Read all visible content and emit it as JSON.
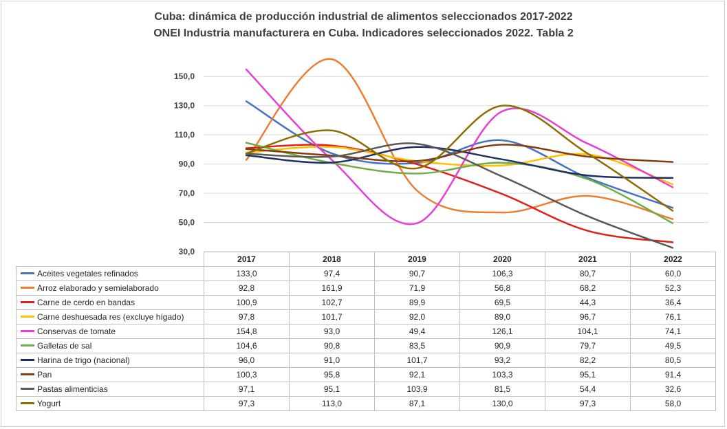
{
  "chart_data": {
    "type": "line",
    "title": "Cuba: dinámica de producción industrial de alimentos seleccionados  2017-2022",
    "subtitle": "ONEI Industria manufacturera en Cuba. Indicadores seleccionados 2022. Tabla 2",
    "categories": [
      "2017",
      "2018",
      "2019",
      "2020",
      "2021",
      "2022"
    ],
    "ylim": [
      30,
      160
    ],
    "yticks": [
      "150,0",
      "130,0",
      "110,0",
      "90,0",
      "70,0",
      "50,0",
      "30,0"
    ],
    "ytick_values": [
      150,
      130,
      110,
      90,
      70,
      50,
      30
    ],
    "grid": true,
    "legend": "data-table",
    "series": [
      {
        "name": "Aceites vegetales refinados",
        "color": "#4472c4",
        "values": [
          133.0,
          97.4,
          90.7,
          106.3,
          80.7,
          60.0
        ],
        "labels": [
          "133,0",
          "97,4",
          "90,7",
          "106,3",
          "80,7",
          "60,0"
        ]
      },
      {
        "name": "Arroz elaborado y semielaborado",
        "color": "#ed7d31",
        "values": [
          92.8,
          161.9,
          71.9,
          56.8,
          68.2,
          52.3
        ],
        "labels": [
          "92,8",
          "161,9",
          "71,9",
          "56,8",
          "68,2",
          "52,3"
        ]
      },
      {
        "name": "Carne de cerdo en bandas",
        "color": "#e0201b",
        "values": [
          100.9,
          102.7,
          89.9,
          69.5,
          44.3,
          36.4
        ],
        "labels": [
          "100,9",
          "102,7",
          "89,9",
          "69,5",
          "44,3",
          "36,4"
        ]
      },
      {
        "name": "Carne deshuesada res (excluye hígado)",
        "color": "#ffc000",
        "values": [
          97.8,
          101.7,
          92.0,
          89.0,
          96.7,
          76.1
        ],
        "labels": [
          "97,8",
          "101,7",
          "92,0",
          "89,0",
          "96,7",
          "76,1"
        ]
      },
      {
        "name": "Conservas de tomate",
        "color": "#e83ed6",
        "values": [
          154.8,
          93.0,
          49.4,
          126.1,
          104.1,
          74.1
        ],
        "labels": [
          "154,8",
          "93,0",
          "49,4",
          "126,1",
          "104,1",
          "74,1"
        ]
      },
      {
        "name": "Galletas de sal",
        "color": "#70ad47",
        "values": [
          104.6,
          90.8,
          83.5,
          90.9,
          79.7,
          49.5
        ],
        "labels": [
          "104,6",
          "90,8",
          "83,5",
          "90,9",
          "79,7",
          "49,5"
        ]
      },
      {
        "name": "Harina de trigo (nacional)",
        "color": "#1f2f66",
        "values": [
          96.0,
          91.0,
          101.7,
          93.2,
          82.2,
          80.5
        ],
        "labels": [
          "96,0",
          "91,0",
          "101,7",
          "93,2",
          "82,2",
          "80,5"
        ]
      },
      {
        "name": "Pan",
        "color": "#843c0c",
        "values": [
          100.3,
          95.8,
          92.1,
          103.3,
          95.1,
          91.4
        ],
        "labels": [
          "100,3",
          "95,8",
          "92,1",
          "103,3",
          "95,1",
          "91,4"
        ]
      },
      {
        "name": "Pastas alimenticias",
        "color": "#595959",
        "values": [
          97.1,
          95.1,
          103.9,
          81.5,
          54.4,
          32.6
        ],
        "labels": [
          "97,1",
          "95,1",
          "103,9",
          "81,5",
          "54,4",
          "32,6"
        ]
      },
      {
        "name": "Yogurt",
        "color": "#8c6d00",
        "values": [
          97.3,
          113.0,
          87.1,
          130.0,
          97.3,
          58.0
        ],
        "labels": [
          "97,3",
          "113,0",
          "87,1",
          "130,0",
          "97,3",
          "58,0"
        ]
      }
    ]
  }
}
